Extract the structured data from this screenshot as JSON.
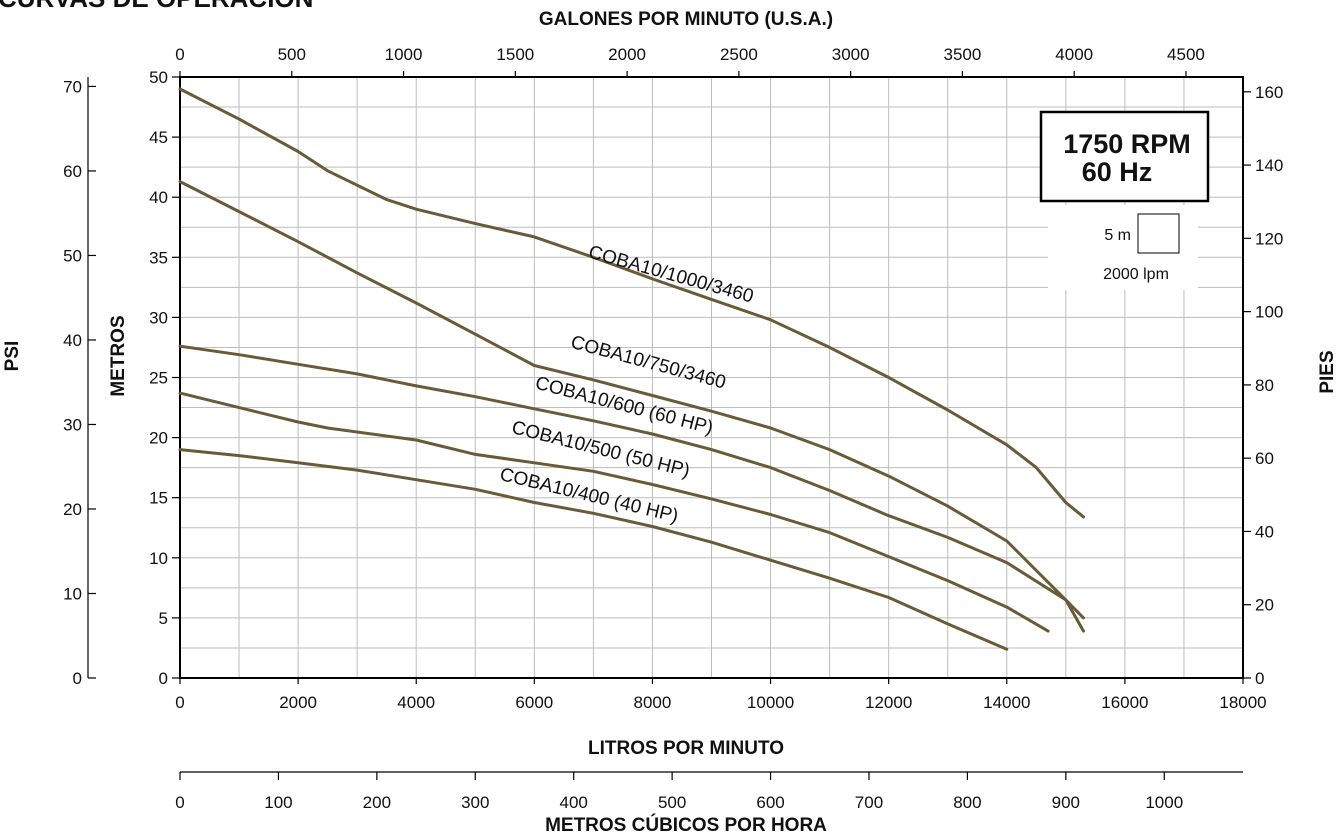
{
  "chart_data": {
    "type": "line",
    "title": "CURVAS DE OPERACIÓN",
    "xlabel": "LITROS POR MINUTO",
    "ylabel": "METROS",
    "xlim": [
      0,
      18000
    ],
    "ylim": [
      0,
      50
    ],
    "grid": true,
    "x_ticks": [
      "0",
      "2000",
      "4000",
      "6000",
      "8000",
      "10000",
      "12000",
      "14000",
      "16000",
      "18000"
    ],
    "y_ticks": [
      "0",
      "5",
      "10",
      "15",
      "20",
      "25",
      "30",
      "35",
      "40",
      "45",
      "50"
    ],
    "secondary_axes": {
      "top": {
        "label": "GALONES POR MINUTO (U.S.A.)",
        "ticks": [
          "0",
          "500",
          "1000",
          "1500",
          "2000",
          "2500",
          "3000",
          "3500",
          "4000",
          "4500"
        ]
      },
      "bottom2": {
        "label": "METROS CÚBICOS POR HORA",
        "ticks": [
          "0",
          "100",
          "200",
          "300",
          "400",
          "500",
          "600",
          "700",
          "800",
          "900",
          "1000"
        ]
      },
      "left2": {
        "label": "PSI",
        "ticks": [
          "0",
          "10",
          "20",
          "30",
          "40",
          "50",
          "60",
          "70"
        ]
      },
      "right": {
        "label": "PIES",
        "ticks": [
          "0",
          "20",
          "40",
          "60",
          "80",
          "100",
          "120",
          "140",
          "160"
        ]
      }
    },
    "info_box": {
      "line1": "1750 RPM",
      "line2": "60 Hz"
    },
    "scale_legend": {
      "vertical": "5 m",
      "horizontal": "2000 lpm"
    },
    "series_color": "#6b5a38",
    "series": [
      {
        "name": "COBA10/1000/3460",
        "x": [
          0,
          1000,
          2000,
          2500,
          3500,
          4000,
          5000,
          6000,
          7000,
          8000,
          9000,
          10000,
          11000,
          12000,
          13000,
          14000,
          14500,
          15000,
          15300
        ],
        "y": [
          49,
          46.5,
          43.8,
          42.2,
          39.8,
          39,
          37.8,
          36.7,
          35,
          33.2,
          31.5,
          29.8,
          27.5,
          25,
          22.3,
          19.4,
          17.5,
          14.6,
          13.4
        ]
      },
      {
        "name": "COBA10/750/3460",
        "x": [
          0,
          1000,
          2000,
          3000,
          4000,
          5000,
          6000,
          7000,
          8000,
          9000,
          10000,
          11000,
          12000,
          13000,
          14000,
          15000,
          15300
        ],
        "y": [
          41.3,
          38.8,
          36.3,
          33.7,
          31.2,
          28.6,
          26,
          24.8,
          23.5,
          22.2,
          20.8,
          19,
          16.8,
          14.3,
          11.4,
          6.5,
          3.9
        ]
      },
      {
        "name": "COBA10/600 (60 HP)",
        "x": [
          0,
          1000,
          2000,
          3000,
          4000,
          5000,
          6000,
          7000,
          8000,
          9000,
          10000,
          11000,
          12000,
          13000,
          14000,
          15000,
          15300
        ],
        "y": [
          27.6,
          26.9,
          26.1,
          25.3,
          24.3,
          23.4,
          22.4,
          21.4,
          20.3,
          19,
          17.5,
          15.6,
          13.5,
          11.7,
          9.6,
          6.5,
          5
        ]
      },
      {
        "name": "COBA10/500 (50 HP)",
        "x": [
          0,
          1000,
          2000,
          2500,
          4000,
          5000,
          6000,
          7000,
          8000,
          9000,
          10000,
          11000,
          12000,
          13000,
          14000,
          14700
        ],
        "y": [
          23.7,
          22.5,
          21.3,
          20.8,
          19.8,
          18.6,
          17.9,
          17.2,
          16.1,
          14.9,
          13.6,
          12.1,
          10.1,
          8.1,
          5.9,
          3.9
        ]
      },
      {
        "name": "COBA10/400 (40 HP)",
        "x": [
          0,
          1000,
          2000,
          3000,
          4000,
          5000,
          6000,
          7000,
          8000,
          9000,
          10000,
          11000,
          12000,
          13000,
          14000
        ],
        "y": [
          19,
          18.5,
          17.9,
          17.3,
          16.5,
          15.7,
          14.6,
          13.7,
          12.6,
          11.3,
          9.8,
          8.3,
          6.7,
          4.5,
          2.4
        ]
      }
    ]
  }
}
